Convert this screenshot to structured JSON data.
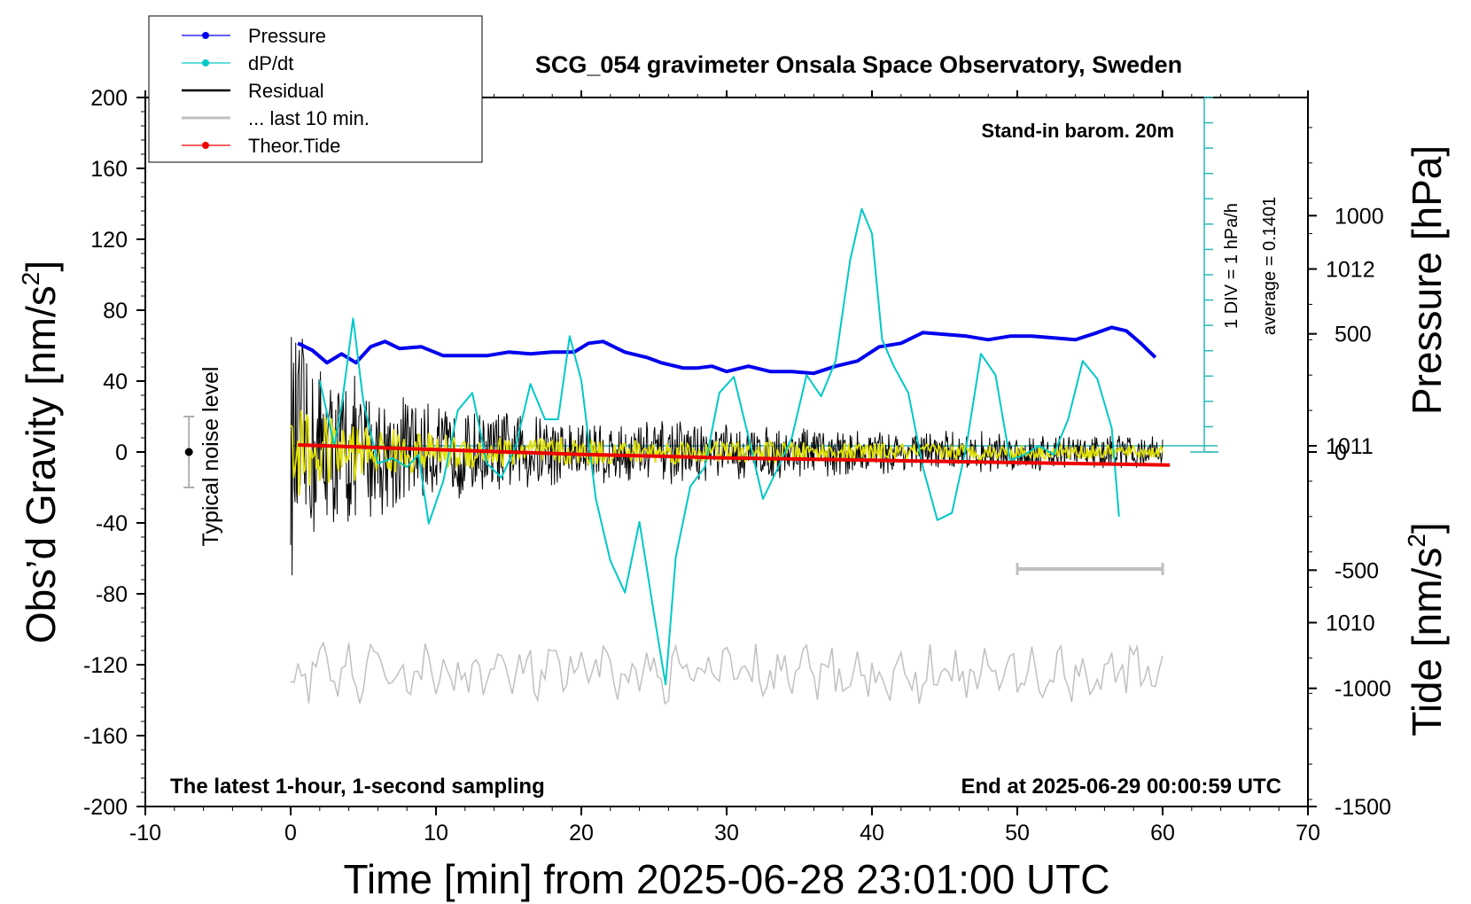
{
  "chart_data": {
    "type": "line",
    "title": "SCG_054 gravimeter Onsala Space Observatory, Sweden",
    "xlabel": "Time [min] from 2025-06-28 23:01:00 UTC",
    "ylabel_left_base": "Obs’d Gravity [nm/s",
    "ylabel_left_sup": "2",
    "ylabel_left_tail": "]",
    "ylabel_right_pressure": "Pressure [hPa]",
    "ylabel_right_tide_base": "Tide [nm/s",
    "ylabel_right_tide_sup": "2",
    "ylabel_right_tide_tail": "]",
    "xlim": [
      -10,
      70
    ],
    "ylim": [
      -200,
      200
    ],
    "x_ticks": [
      "-10",
      "0",
      "10",
      "20",
      "30",
      "40",
      "50",
      "60",
      "70"
    ],
    "x_tick_values": [
      -10,
      0,
      10,
      20,
      30,
      40,
      50,
      60,
      70
    ],
    "y_ticks": [
      "200",
      "160",
      "120",
      "80",
      "40",
      "0",
      "-40",
      "-80",
      "-120",
      "-160",
      "-200"
    ],
    "y_tick_values": [
      200,
      160,
      120,
      80,
      40,
      0,
      -40,
      -80,
      -120,
      -160,
      -200
    ],
    "pressure_axis": {
      "ticks": [
        "1012",
        "1011",
        "1010"
      ],
      "tick_values": [
        1012,
        1011,
        1010
      ],
      "ylim": [
        1008.96,
        1012.97
      ]
    },
    "tide_axis": {
      "ticks": [
        "1000",
        "500",
        "0",
        "-500",
        "-1000",
        "-1500"
      ],
      "tick_values": [
        1000,
        500,
        0,
        -500,
        -1000,
        -1500
      ],
      "ylim": [
        -1500,
        1500
      ]
    },
    "legend_placement": "top-left",
    "legend": [
      {
        "label": "Pressure",
        "color": "#0000ee",
        "marker": true
      },
      {
        "label": "dP/dt",
        "color": "#00c8c8",
        "marker": true
      },
      {
        "label": "Residual",
        "color": "#000000",
        "marker": false
      },
      {
        "label": "... last 10 min.",
        "color": "#c0c0c0",
        "marker": false
      },
      {
        "label": "Theor.Tide",
        "color": "#ee0000",
        "marker": true
      }
    ],
    "annotations": {
      "top_right": "Stand-in barom. 20m",
      "bottom_left": "The latest 1-hour, 1-second sampling",
      "bottom_right": "End at 2025-06-29 00:00:59 UTC",
      "noise": "Typical noise level",
      "dpdt_scale": "1 DIV = 1 hPa/h",
      "dpdt_avg": "average = 0.1401"
    },
    "noise_bar": {
      "x": -7,
      "y": 0,
      "half_range": 20
    },
    "grey_bar_x": [
      50,
      60
    ],
    "grey_bar_y": -66,
    "series": [
      {
        "name": "Pressure",
        "axis": "pressure",
        "color": "#0000ee",
        "x": [
          0.5,
          1.5,
          2.5,
          3.5,
          4.5,
          5.5,
          6.5,
          7.5,
          9,
          10.5,
          12,
          13.5,
          15,
          16.5,
          18,
          19.5,
          20.5,
          21.5,
          23,
          24.5,
          25.5,
          27,
          28,
          29,
          30,
          31.5,
          33,
          34.5,
          36,
          37.5,
          39,
          40.5,
          42,
          43.5,
          45,
          46.5,
          48,
          49.5,
          51,
          52.5,
          54,
          55.5,
          56.5,
          57.5,
          58.5,
          59.5
        ],
        "y": [
          1011.58,
          1011.54,
          1011.47,
          1011.52,
          1011.47,
          1011.56,
          1011.59,
          1011.55,
          1011.56,
          1011.51,
          1011.51,
          1011.51,
          1011.53,
          1011.52,
          1011.53,
          1011.53,
          1011.58,
          1011.59,
          1011.53,
          1011.5,
          1011.47,
          1011.44,
          1011.44,
          1011.45,
          1011.42,
          1011.45,
          1011.42,
          1011.42,
          1011.41,
          1011.45,
          1011.48,
          1011.56,
          1011.58,
          1011.64,
          1011.63,
          1011.62,
          1011.6,
          1011.62,
          1011.62,
          1011.61,
          1011.6,
          1011.64,
          1011.67,
          1011.65,
          1011.58,
          1011.5
        ]
      },
      {
        "name": "dP/dt",
        "axis": "pressure",
        "color": "#00c8c8",
        "x": [
          2,
          3,
          3.5,
          4.3,
          5,
          6,
          7,
          8,
          8.8,
          9.5,
          10.5,
          11.5,
          12.5,
          13.5,
          14.5,
          15.5,
          16.5,
          17.5,
          18.4,
          19.2,
          20,
          21,
          22,
          23,
          24,
          25,
          25.8,
          26.5,
          27.5,
          28.5,
          29.5,
          30.5,
          31.5,
          32.5,
          33.5,
          34.5,
          35.5,
          36.5,
          37.5,
          38.5,
          39.3,
          40,
          40.7,
          41.5,
          42.5,
          43.5,
          44.5,
          45.5,
          46.5,
          47.5,
          48.5,
          49.5,
          50.5,
          51.5,
          52.5,
          53.5,
          54.5,
          55.5,
          56.5,
          57
        ],
        "y": [
          1011.37,
          1011.0,
          1011.22,
          1011.72,
          1011.25,
          1010.9,
          1010.93,
          1010.88,
          1010.95,
          1010.56,
          1010.8,
          1011.2,
          1011.3,
          1010.9,
          1010.82,
          1011.0,
          1011.35,
          1011.15,
          1011.15,
          1011.62,
          1011.37,
          1010.7,
          1010.35,
          1010.17,
          1010.57,
          1010.05,
          1009.65,
          1010.37,
          1010.77,
          1010.88,
          1011.3,
          1011.39,
          1011.05,
          1010.7,
          1010.87,
          1011.05,
          1011.4,
          1011.28,
          1011.48,
          1012.05,
          1012.34,
          1012.2,
          1011.6,
          1011.45,
          1011.3,
          1010.88,
          1010.58,
          1010.62,
          1011.0,
          1011.52,
          1011.4,
          1010.92,
          1010.95,
          1011.0,
          1010.95,
          1011.15,
          1011.48,
          1011.38,
          1011.1,
          1010.6
        ]
      },
      {
        "name": "Theor.Tide",
        "axis": "tide",
        "color": "#ee0000",
        "x": [
          0.5,
          10,
          20,
          30,
          40,
          50,
          60.5
        ],
        "y": [
          30,
          10,
          -10,
          -25,
          -35,
          -45,
          -55
        ]
      }
    ],
    "residual": {
      "name": "Residual",
      "color": "#000000",
      "x_start": 0,
      "x_end": 60,
      "envelope_minutes": [
        0,
        2,
        4,
        6,
        10,
        15,
        20,
        30,
        40,
        50,
        60
      ],
      "envelope_amplitude": [
        75,
        60,
        48,
        40,
        30,
        26,
        22,
        18,
        14,
        12,
        10
      ],
      "overlay_color": "#e0e000"
    },
    "last_10_min": {
      "name": "... last 10 min.",
      "color": "#c0c0c0",
      "x_start": 0,
      "x_end": 60,
      "level": -125,
      "amplitude": 12
    }
  }
}
